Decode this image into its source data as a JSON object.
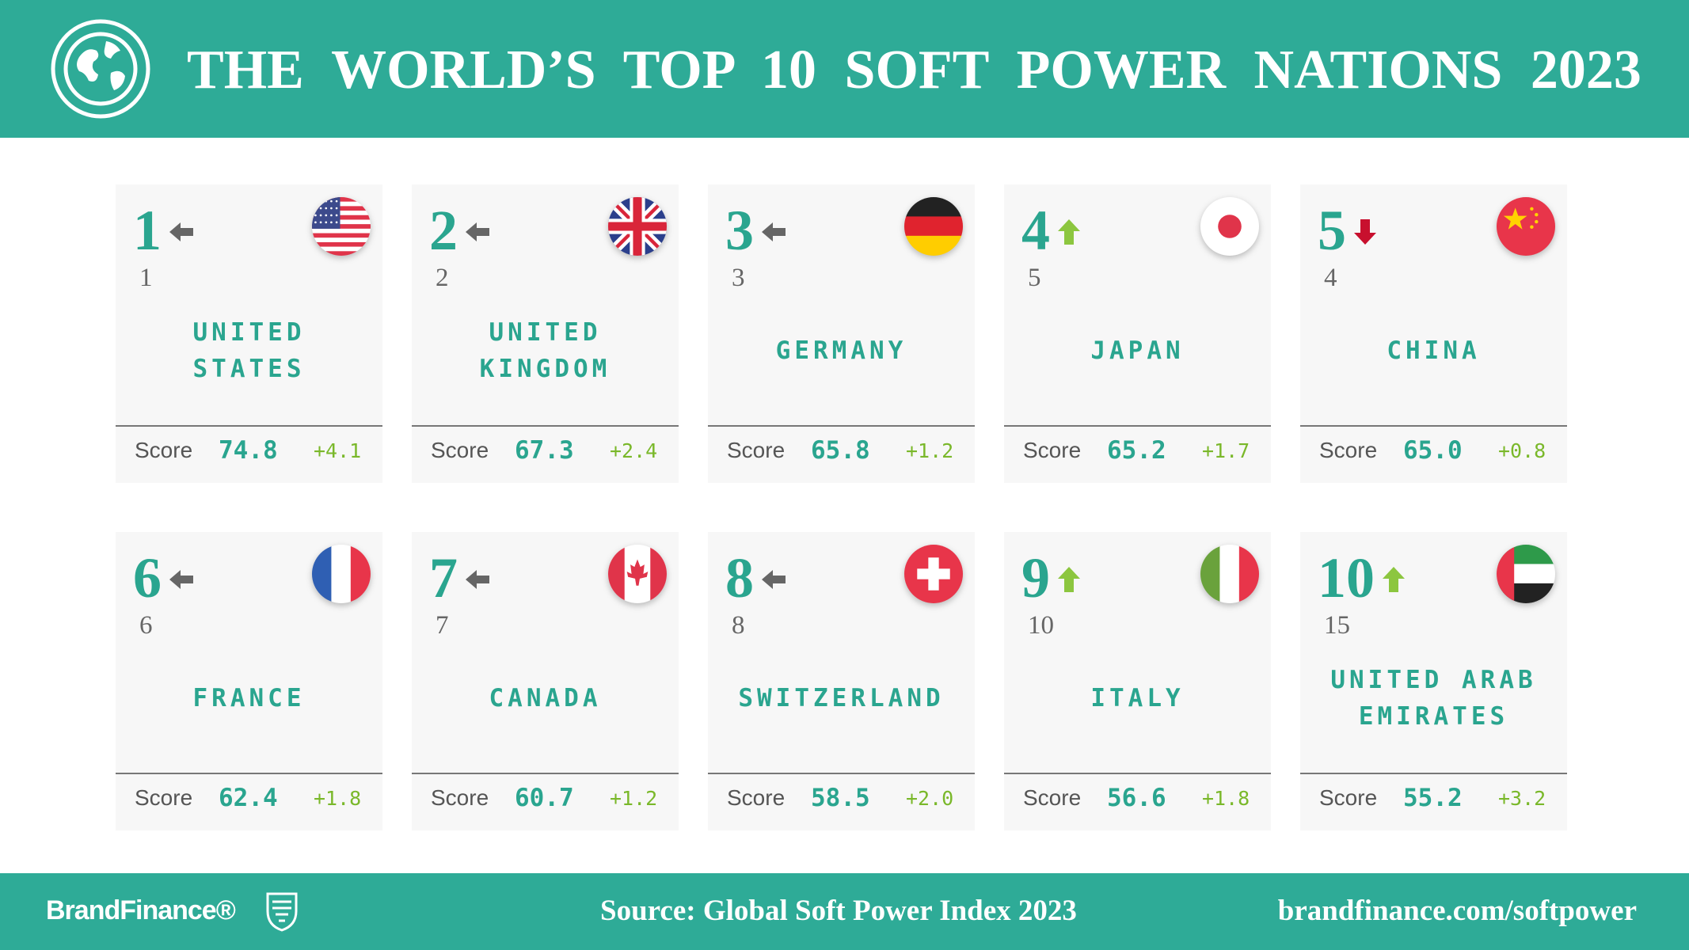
{
  "header": {
    "title": "THE WORLD’S TOP 10 SOFT POWER NATIONS 2023"
  },
  "cards": [
    {
      "rank": "1",
      "previous_rank": "1",
      "country": "UNITED STATES",
      "score_label": "Score",
      "score": "74.8",
      "change": "+4.1"
    },
    {
      "rank": "2",
      "previous_rank": "2",
      "country": "UNITED KINGDOM",
      "score_label": "Score",
      "score": "67.3",
      "change": "+2.4"
    },
    {
      "rank": "3",
      "previous_rank": "3",
      "country": "GERMANY",
      "score_label": "Score",
      "score": "65.8",
      "change": "+1.2"
    },
    {
      "rank": "4",
      "previous_rank": "5",
      "country": "JAPAN",
      "score_label": "Score",
      "score": "65.2",
      "change": "+1.7"
    },
    {
      "rank": "5",
      "previous_rank": "4",
      "country": "CHINA",
      "score_label": "Score",
      "score": "65.0",
      "change": "+0.8"
    },
    {
      "rank": "6",
      "previous_rank": "6",
      "country": "FRANCE",
      "score_label": "Score",
      "score": "62.4",
      "change": "+1.8"
    },
    {
      "rank": "7",
      "previous_rank": "7",
      "country": "CANADA",
      "score_label": "Score",
      "score": "60.7",
      "change": "+1.2"
    },
    {
      "rank": "8",
      "previous_rank": "8",
      "country": "SWITZERLAND",
      "score_label": "Score",
      "score": "58.5",
      "change": "+2.0"
    },
    {
      "rank": "9",
      "previous_rank": "10",
      "country": "ITALY",
      "score_label": "Score",
      "score": "56.6",
      "change": "+1.8"
    },
    {
      "rank": "10",
      "previous_rank": "15",
      "country": "UNITED ARAB EMIRATES",
      "score_label": "Score",
      "score": "55.2",
      "change": "+3.2"
    }
  ],
  "footer": {
    "brand": "BrandFinance®",
    "source": "Source: Global Soft Power Index 2023",
    "url": "brandfinance.com/softpower"
  }
}
